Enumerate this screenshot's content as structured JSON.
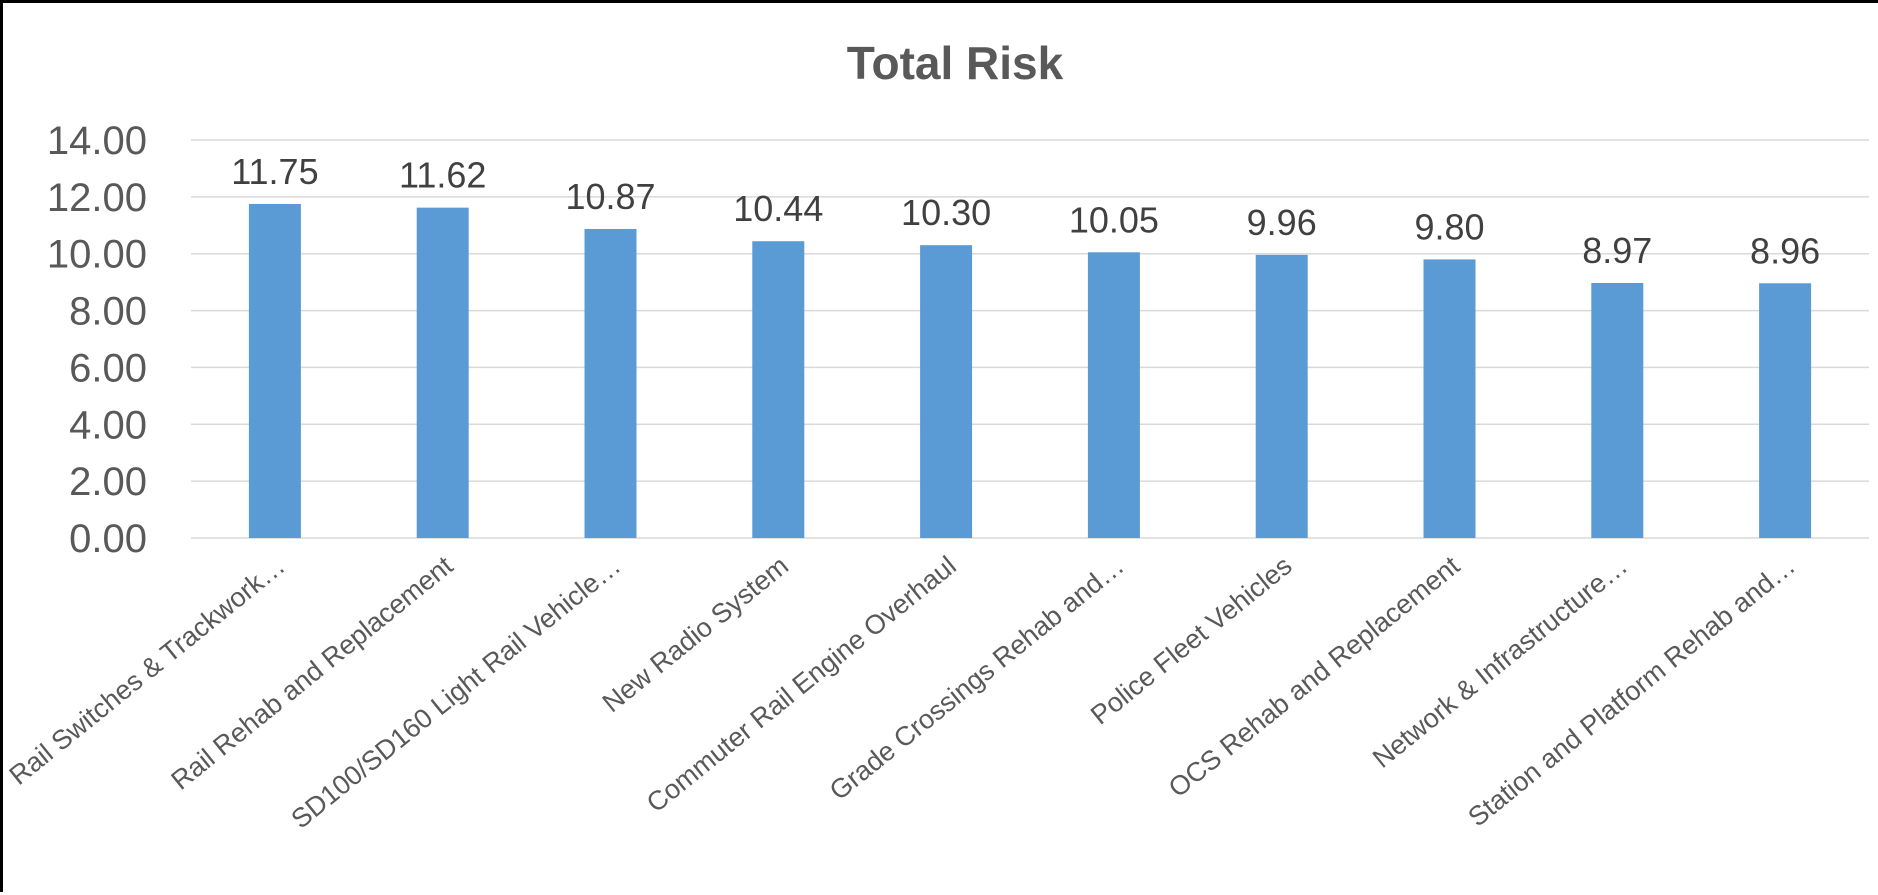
{
  "chart_data": {
    "type": "bar",
    "title": "Total Risk",
    "xlabel": "",
    "ylabel": "",
    "categories": [
      "Rail Switches & Trackwork…",
      "Rail Rehab and Replacement",
      "SD100/SD160 Light Rail Vehicle…",
      "New Radio System",
      "Commuter Rail Engine Overhaul",
      "Grade Crossings Rehab and…",
      "Police Fleet Vehicles",
      "OCS Rehab and Replacement",
      "Network & Infrastructure…",
      "Station and Platform Rehab and…"
    ],
    "values": [
      11.75,
      11.62,
      10.87,
      10.44,
      10.3,
      10.05,
      9.96,
      9.8,
      8.97,
      8.96
    ],
    "data_labels": [
      "11.75",
      "11.62",
      "10.87",
      "10.44",
      "10.30",
      "10.05",
      "9.96",
      "9.80",
      "8.97",
      "8.96"
    ],
    "ylim": [
      0,
      14
    ],
    "y_ticks": [
      "0.00",
      "2.00",
      "4.00",
      "6.00",
      "8.00",
      "10.00",
      "12.00",
      "14.00"
    ],
    "grid": true,
    "legend": "none",
    "colors": {
      "bar": "#5B9BD5",
      "grid": "#D9D9D9",
      "text": "#595959",
      "frame": "#000000"
    }
  }
}
